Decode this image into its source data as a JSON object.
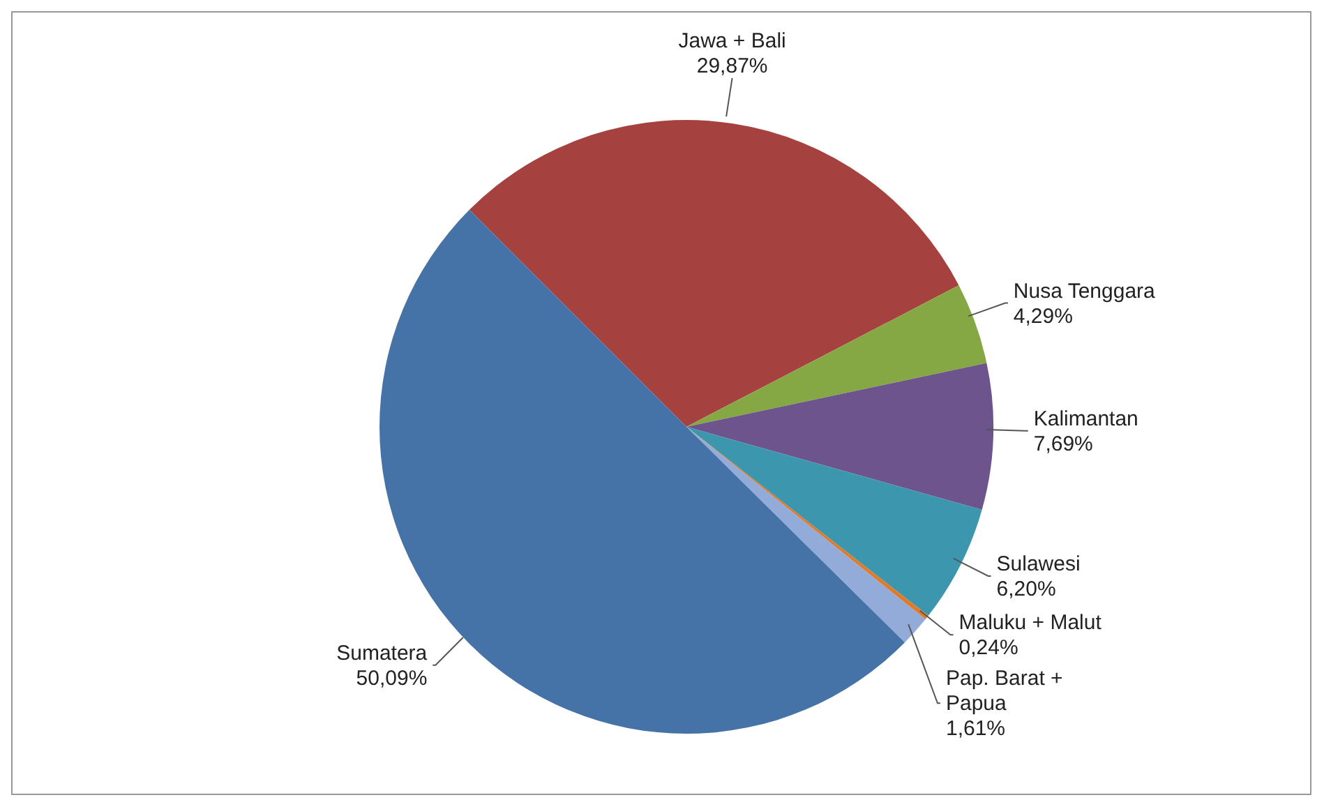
{
  "chart_data": {
    "type": "pie",
    "categories": [
      "Jawa + Bali",
      "Nusa Tenggara",
      "Kalimantan",
      "Sulawesi",
      "Maluku + Malut",
      "Pap. Barat + Papua",
      "Sumatera"
    ],
    "values": [
      29.87,
      4.29,
      7.69,
      6.2,
      0.24,
      1.61,
      50.09
    ],
    "value_labels": [
      "29,87%",
      "4,29%",
      "7,69%",
      "6,20%",
      "0,24%",
      "1,61%",
      "50,09%"
    ],
    "colors": [
      "#a5423f",
      "#86a844",
      "#6e548d",
      "#3c97ae",
      "#e07b2a",
      "#93abd8",
      "#4572a7"
    ],
    "data_labels": true,
    "legend": false
  }
}
